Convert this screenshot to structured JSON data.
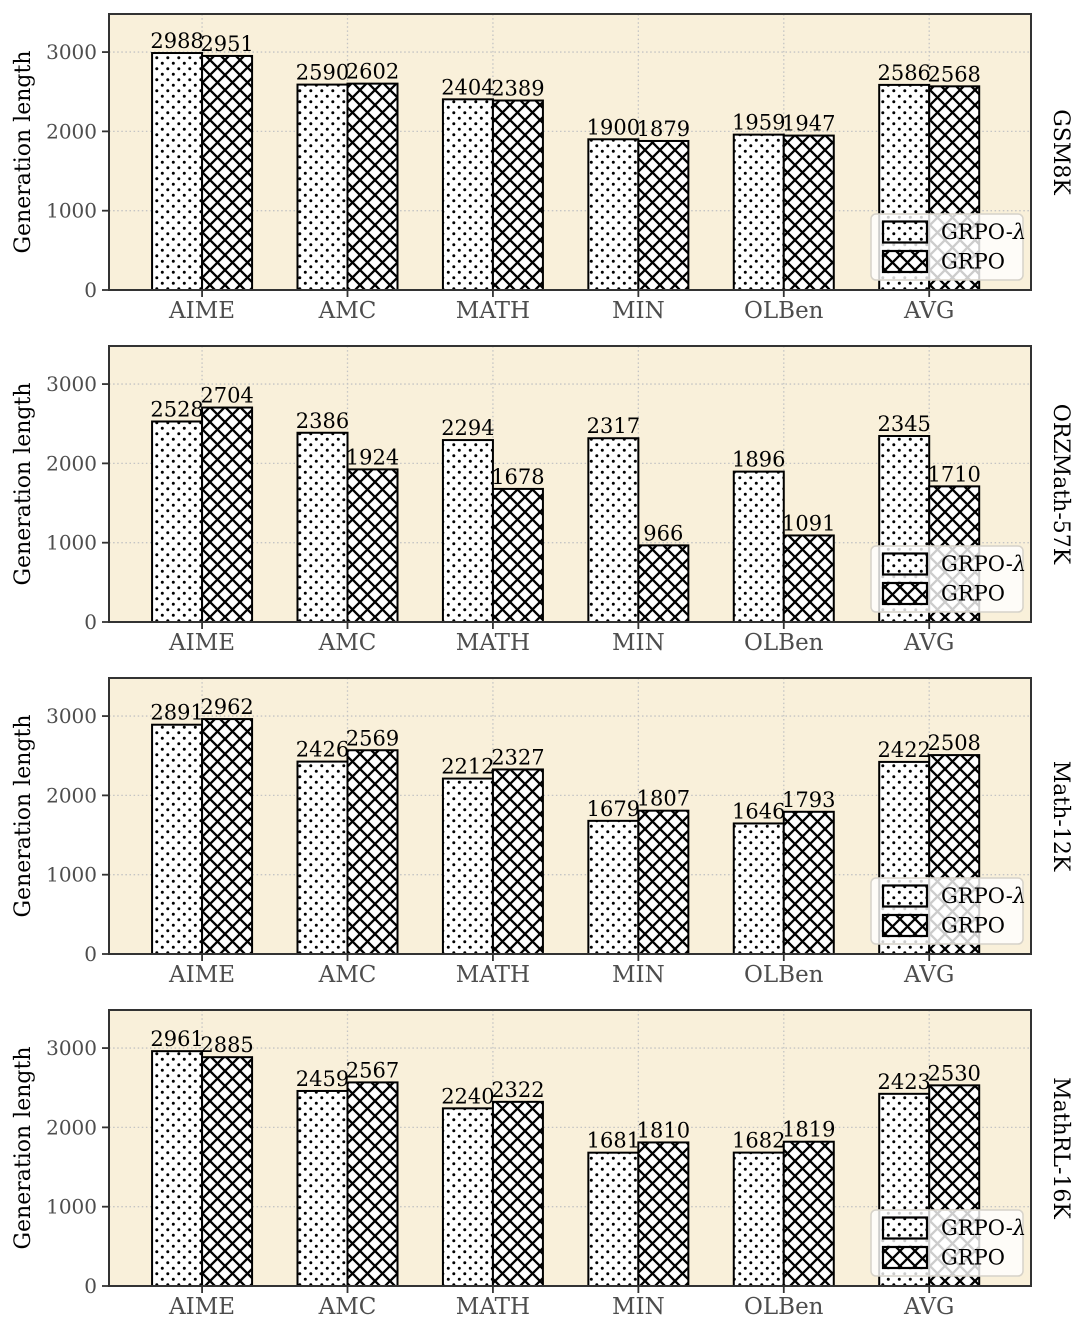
{
  "style": {
    "page_bg": "#ffffff",
    "plot_bg": "#f9f0da",
    "grid_color": "#c4c4c4",
    "spine_color": "#333333",
    "tick_label_color": "#4d4d4d",
    "bar_edge_color": "#000000",
    "value_label_color": "#000000",
    "legend_bg": "#ffffff",
    "legend_bg_opacity": 0.8,
    "legend_border": "#d6d2c9"
  },
  "chart_data": [
    {
      "type": "bar",
      "panel_label": "GSM8K",
      "ylabel": "Generation length",
      "categories": [
        "AIME",
        "AMC",
        "MATH",
        "MIN",
        "OLBen",
        "AVG"
      ],
      "series": [
        {
          "name": "GRPO-λ",
          "hatch": "dots",
          "values": [
            2988,
            2590,
            2404,
            1900,
            1959,
            2586
          ]
        },
        {
          "name": "GRPO",
          "hatch": "cross",
          "values": [
            2951,
            2602,
            2389,
            1879,
            1947,
            2568
          ]
        }
      ],
      "ylim": [
        0,
        3480
      ],
      "yticks": [
        0,
        1000,
        2000,
        3000
      ],
      "grid": true,
      "legend_position": "lower right"
    },
    {
      "type": "bar",
      "panel_label": "ORZMath-57K",
      "ylabel": "Generation length",
      "categories": [
        "AIME",
        "AMC",
        "MATH",
        "MIN",
        "OLBen",
        "AVG"
      ],
      "series": [
        {
          "name": "GRPO-λ",
          "hatch": "dots",
          "values": [
            2528,
            2386,
            2294,
            2317,
            1896,
            2345
          ]
        },
        {
          "name": "GRPO",
          "hatch": "cross",
          "values": [
            2704,
            1924,
            1678,
            966,
            1091,
            1710
          ]
        }
      ],
      "ylim": [
        0,
        3480
      ],
      "yticks": [
        0,
        1000,
        2000,
        3000
      ],
      "grid": true,
      "legend_position": "lower right"
    },
    {
      "type": "bar",
      "panel_label": "Math-12K",
      "ylabel": "Generation length",
      "categories": [
        "AIME",
        "AMC",
        "MATH",
        "MIN",
        "OLBen",
        "AVG"
      ],
      "series": [
        {
          "name": "GRPO-λ",
          "hatch": "dots",
          "values": [
            2891,
            2426,
            2212,
            1679,
            1646,
            2422
          ]
        },
        {
          "name": "GRPO",
          "hatch": "cross",
          "values": [
            2962,
            2569,
            2327,
            1807,
            1793,
            2508
          ]
        }
      ],
      "ylim": [
        0,
        3480
      ],
      "yticks": [
        0,
        1000,
        2000,
        3000
      ],
      "grid": true,
      "legend_position": "lower right"
    },
    {
      "type": "bar",
      "panel_label": "MathRL-16K",
      "ylabel": "Generation length",
      "categories": [
        "AIME",
        "AMC",
        "MATH",
        "MIN",
        "OLBen",
        "AVG"
      ],
      "series": [
        {
          "name": "GRPO-λ",
          "hatch": "dots",
          "values": [
            2961,
            2459,
            2240,
            1681,
            1682,
            2423
          ]
        },
        {
          "name": "GRPO",
          "hatch": "cross",
          "values": [
            2885,
            2567,
            2322,
            1810,
            1819,
            2530
          ]
        }
      ],
      "ylim": [
        0,
        3480
      ],
      "yticks": [
        0,
        1000,
        2000,
        3000
      ],
      "grid": true,
      "legend_position": "lower right"
    }
  ]
}
